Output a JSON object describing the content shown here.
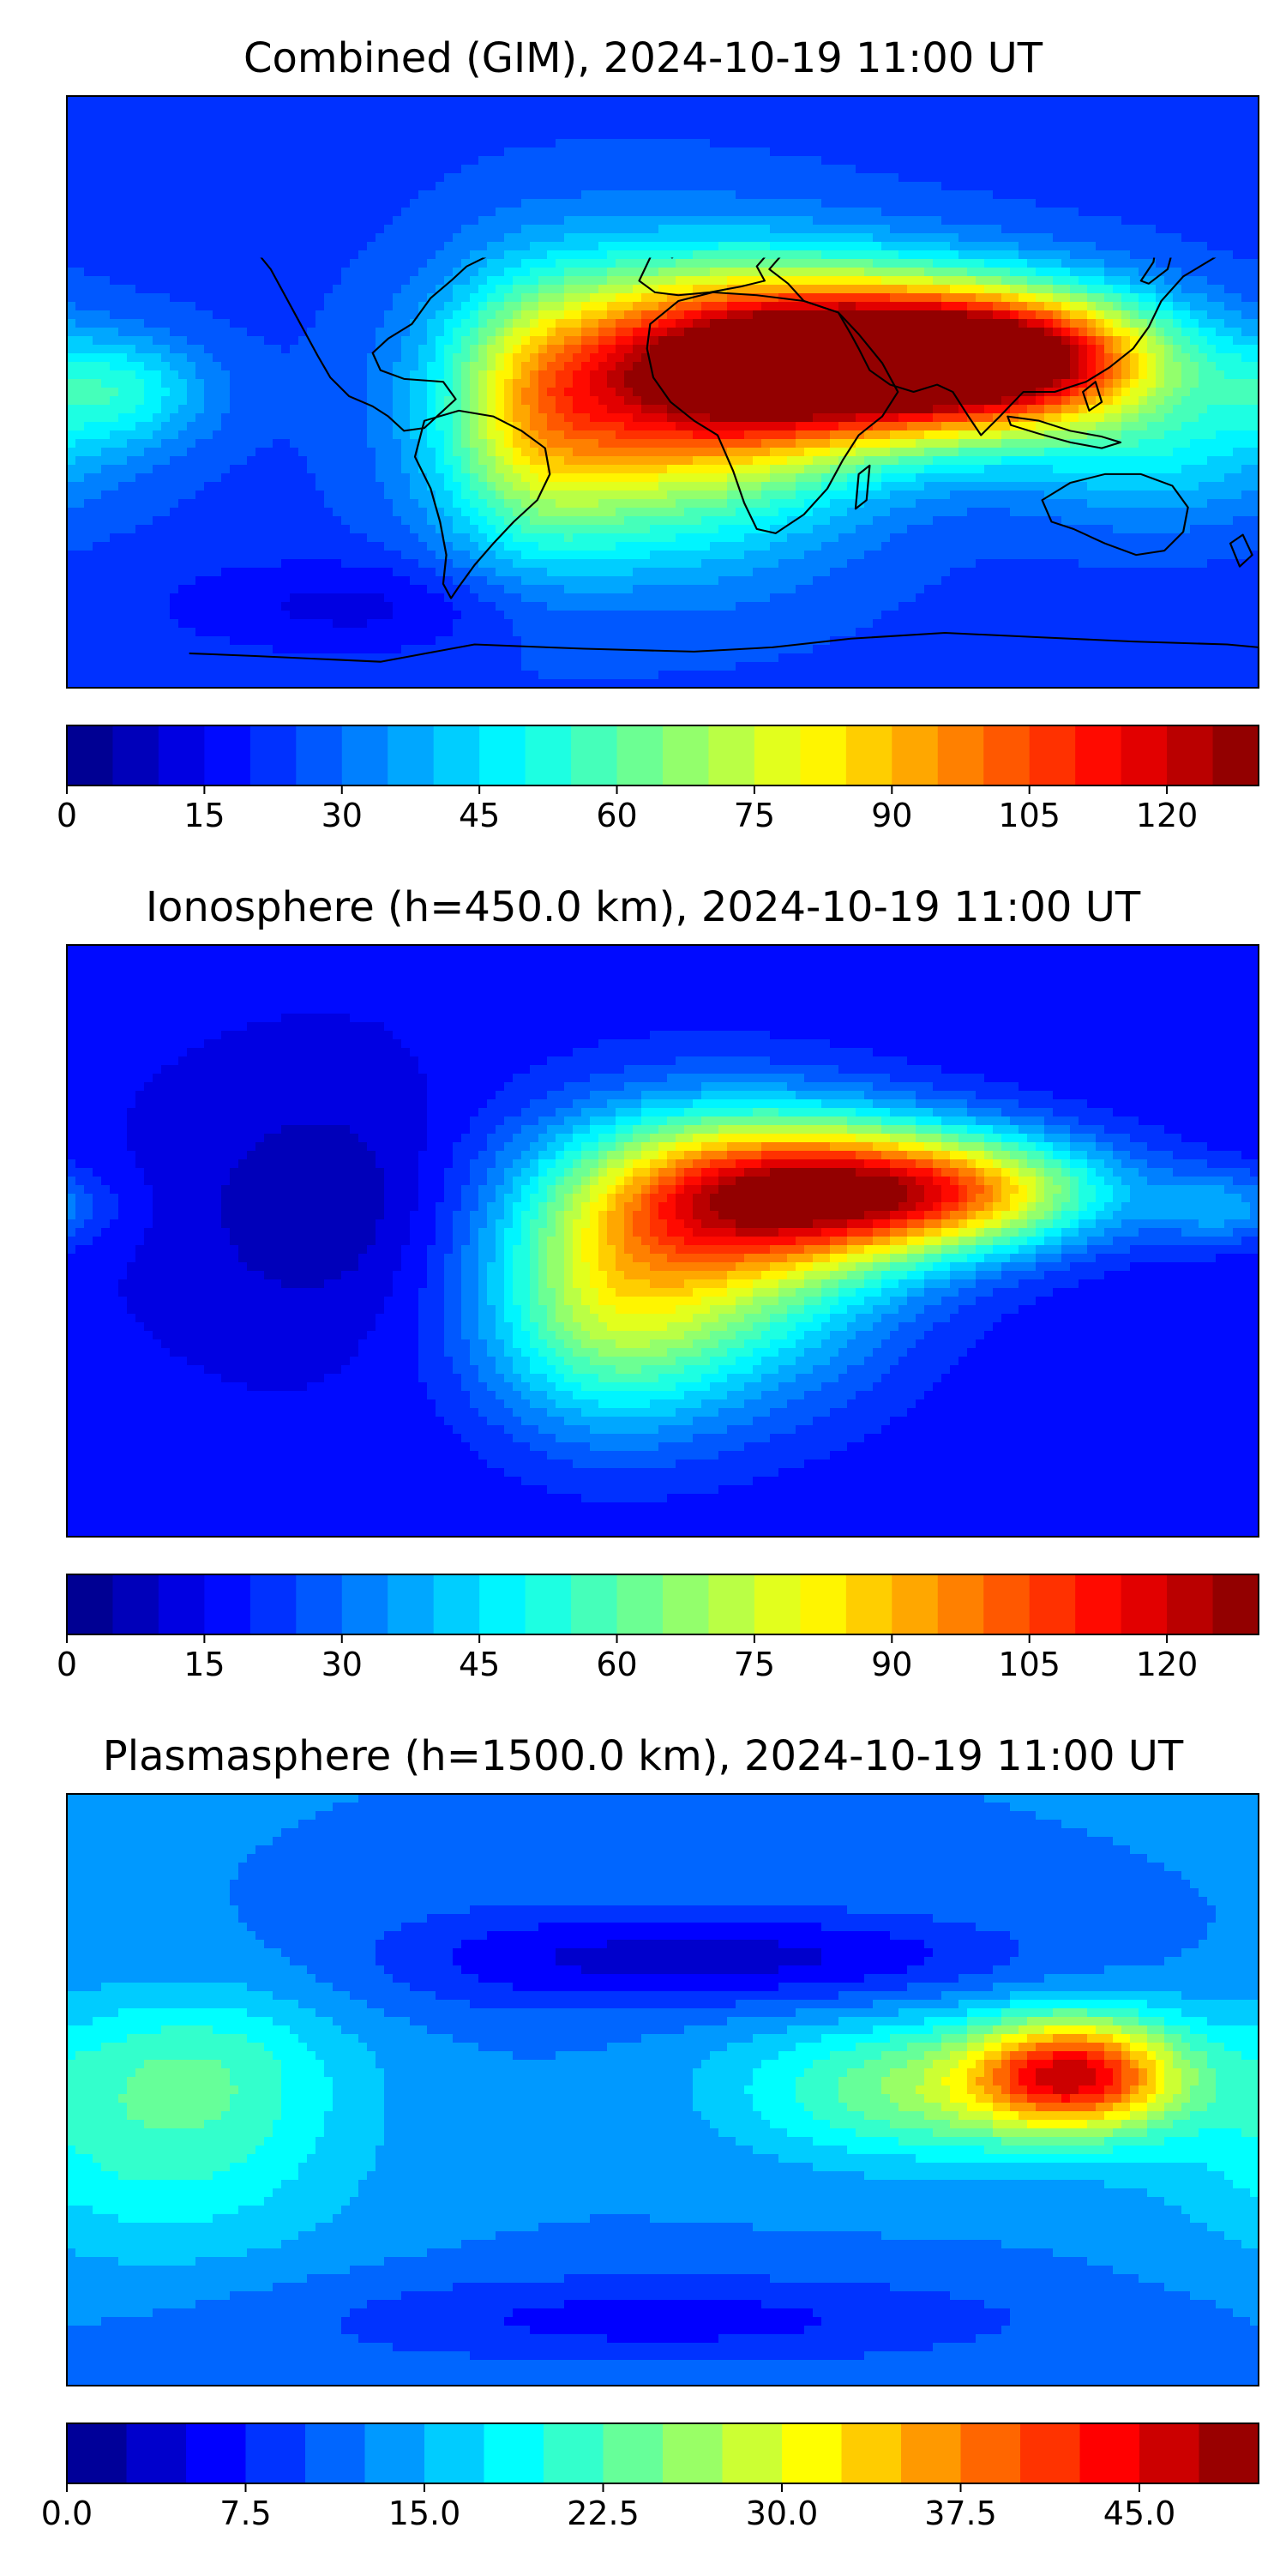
{
  "figure": {
    "panels": [
      {
        "title": "Combined (GIM), 2024-10-19 11:00 UT",
        "colorbar": {
          "min": 0,
          "max": 130,
          "levels": 26,
          "ticks": [
            "0",
            "15",
            "30",
            "45",
            "60",
            "75",
            "90",
            "105",
            "120"
          ],
          "tick_values": [
            0,
            15,
            30,
            45,
            60,
            75,
            90,
            105,
            120
          ]
        },
        "field": {
          "background": 0.18,
          "blobs": [
            {
              "lon": 50,
              "lat": 10,
              "sx": 45,
              "sy": 18,
              "v": 0.78
            },
            {
              "lon": 105,
              "lat": 10,
              "sx": 35,
              "sy": 14,
              "v": 0.65
            },
            {
              "lon": 0,
              "lat": -5,
              "sx": 40,
              "sy": 30,
              "v": 0.45
            },
            {
              "lon": -40,
              "lat": -10,
              "sx": 20,
              "sy": 30,
              "v": 0.22
            },
            {
              "lon": -165,
              "lat": 0,
              "sx": 20,
              "sy": 12,
              "v": 0.2
            },
            {
              "lon": 150,
              "lat": -20,
              "sx": 30,
              "sy": 15,
              "v": 0.15
            },
            {
              "lon": -90,
              "lat": -65,
              "sx": 40,
              "sy": 10,
              "v": -0.08
            }
          ]
        }
      },
      {
        "title": "Ionosphere  (h=450.0 km), 2024-10-19 11:00 UT",
        "colorbar": {
          "min": 0,
          "max": 130,
          "levels": 26,
          "ticks": [
            "0",
            "15",
            "30",
            "45",
            "60",
            "75",
            "90",
            "105",
            "120"
          ],
          "tick_values": [
            0,
            15,
            30,
            45,
            60,
            75,
            90,
            105,
            120
          ]
        },
        "field": {
          "background": 0.12,
          "blobs": [
            {
              "lon": 40,
              "lat": 15,
              "sx": 40,
              "sy": 16,
              "v": 0.55
            },
            {
              "lon": 90,
              "lat": 15,
              "sx": 35,
              "sy": 12,
              "v": 0.42
            },
            {
              "lon": 10,
              "lat": -5,
              "sx": 40,
              "sy": 30,
              "v": 0.4
            },
            {
              "lon": -20,
              "lat": -25,
              "sx": 25,
              "sy": 25,
              "v": 0.2
            },
            {
              "lon": 170,
              "lat": 10,
              "sx": 15,
              "sy": 8,
              "v": 0.15
            },
            {
              "lon": -100,
              "lat": 10,
              "sx": 30,
              "sy": 25,
              "v": -0.08
            }
          ]
        }
      },
      {
        "title": "Plasmasphere (h=1500.0 km), 2024-10-19 11:00 UT",
        "colorbar": {
          "min": 0,
          "max": 50,
          "levels": 20,
          "ticks": [
            "0.0",
            "7.5",
            "15.0",
            "22.5",
            "30.0",
            "37.5",
            "45.0"
          ],
          "tick_values": [
            0,
            7.5,
            15,
            22.5,
            30,
            37.5,
            45
          ]
        },
        "field": {
          "background": 0.25,
          "blobs": [
            {
              "lon": 125,
              "lat": 5,
              "sx": 22,
              "sy": 12,
              "v": 0.55
            },
            {
              "lon": 80,
              "lat": 0,
              "sx": 40,
              "sy": 15,
              "v": 0.25
            },
            {
              "lon": -150,
              "lat": -15,
              "sx": 40,
              "sy": 25,
              "v": 0.17
            },
            {
              "lon": -140,
              "lat": 10,
              "sx": 30,
              "sy": 15,
              "v": 0.1
            },
            {
              "lon": 40,
              "lat": 40,
              "sx": 50,
              "sy": 10,
              "v": -0.15
            },
            {
              "lon": -40,
              "lat": 40,
              "sx": 40,
              "sy": 12,
              "v": -0.1
            },
            {
              "lon": 0,
              "lat": -70,
              "sx": 80,
              "sy": 10,
              "v": -0.12
            }
          ]
        }
      }
    ]
  },
  "icons": {
    "coastline": "world-coastline-icon"
  }
}
